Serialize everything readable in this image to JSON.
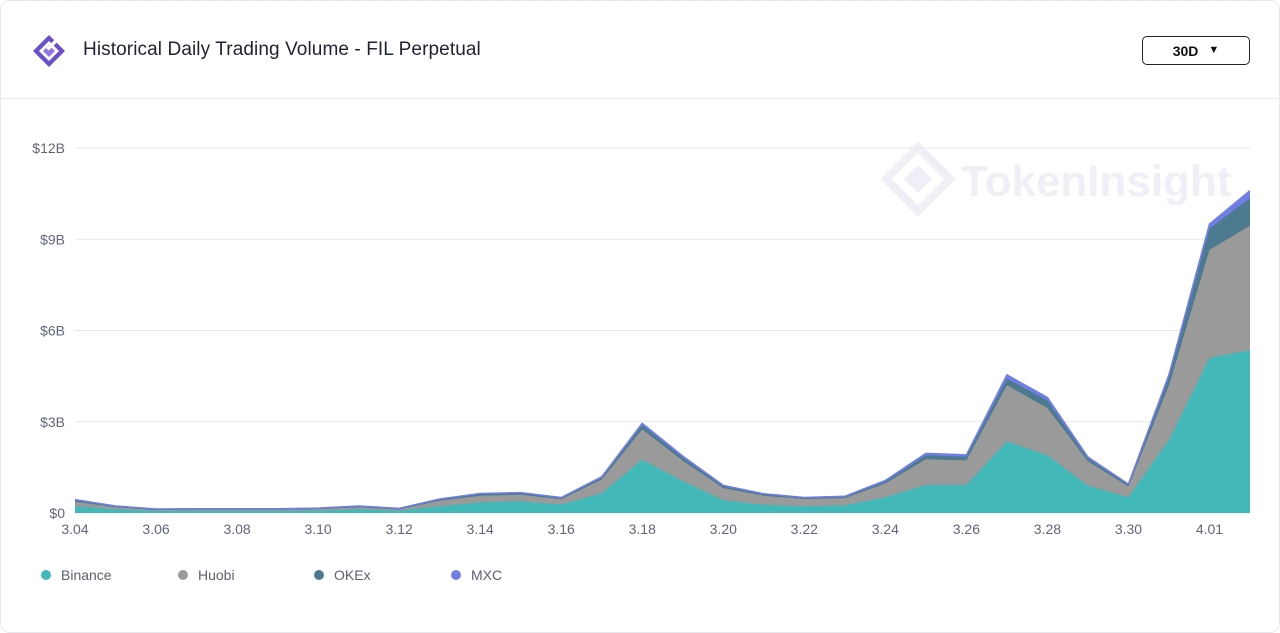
{
  "header": {
    "title": "Historical Daily Trading Volume - FIL Perpetual",
    "range_label": "30D"
  },
  "watermark": "TokenInsight",
  "colors": {
    "binance": "#43b8b8",
    "huobi": "#9a9a9a",
    "okex": "#4e7a90",
    "mxc": "#6f7fe3",
    "grid": "#e5e7ec",
    "axis_text": "#60667a"
  },
  "legend": [
    {
      "label": "Binance",
      "color": "#43b8b8"
    },
    {
      "label": "Huobi",
      "color": "#9a9a9a"
    },
    {
      "label": "OKEx",
      "color": "#4e7a90"
    },
    {
      "label": "MXC",
      "color": "#6f7fe3"
    }
  ],
  "chart_data": {
    "type": "area",
    "stacked": true,
    "x": [
      "3.04",
      "3.05",
      "3.06",
      "3.07",
      "3.08",
      "3.09",
      "3.10",
      "3.11",
      "3.12",
      "3.13",
      "3.14",
      "3.15",
      "3.16",
      "3.17",
      "3.18",
      "3.19",
      "3.20",
      "3.21",
      "3.22",
      "3.23",
      "3.24",
      "3.25",
      "3.26",
      "3.27",
      "3.28",
      "3.29",
      "3.30",
      "3.31",
      "4.01",
      "4.02"
    ],
    "x_tick_labels": [
      "3.04",
      "3.06",
      "3.08",
      "3.10",
      "3.12",
      "3.14",
      "3.16",
      "3.18",
      "3.20",
      "3.22",
      "3.24",
      "3.26",
      "3.28",
      "3.30",
      "4.01"
    ],
    "y_tick_labels": [
      "$0",
      "$3B",
      "$6B",
      "$9B",
      "$12B"
    ],
    "y_ticks": [
      0,
      3,
      6,
      9,
      12
    ],
    "ylim": [
      0,
      12
    ],
    "y_unit": "billions USD",
    "series": [
      {
        "name": "Binance",
        "values": [
          0.22,
          0.12,
          0.07,
          0.07,
          0.07,
          0.07,
          0.08,
          0.12,
          0.08,
          0.22,
          0.35,
          0.38,
          0.28,
          0.65,
          1.75,
          1.05,
          0.42,
          0.27,
          0.22,
          0.25,
          0.52,
          0.92,
          0.92,
          2.35,
          1.9,
          0.9,
          0.52,
          2.4,
          5.1,
          5.35
        ]
      },
      {
        "name": "Huobi",
        "values": [
          0.15,
          0.07,
          0.03,
          0.04,
          0.04,
          0.04,
          0.05,
          0.07,
          0.04,
          0.18,
          0.22,
          0.22,
          0.17,
          0.45,
          1.0,
          0.67,
          0.4,
          0.3,
          0.24,
          0.24,
          0.45,
          0.85,
          0.81,
          1.85,
          1.55,
          0.8,
          0.35,
          1.8,
          3.55,
          4.1
        ]
      },
      {
        "name": "OKEx",
        "values": [
          0.05,
          0.03,
          0.02,
          0.02,
          0.02,
          0.02,
          0.02,
          0.03,
          0.02,
          0.04,
          0.05,
          0.05,
          0.04,
          0.06,
          0.14,
          0.1,
          0.06,
          0.04,
          0.03,
          0.04,
          0.06,
          0.13,
          0.12,
          0.22,
          0.25,
          0.09,
          0.05,
          0.25,
          0.7,
          0.9
        ]
      },
      {
        "name": "MXC",
        "values": [
          0.02,
          0.01,
          0.01,
          0.01,
          0.01,
          0.01,
          0.01,
          0.01,
          0.01,
          0.02,
          0.02,
          0.02,
          0.02,
          0.03,
          0.06,
          0.05,
          0.03,
          0.02,
          0.02,
          0.02,
          0.04,
          0.06,
          0.06,
          0.12,
          0.1,
          0.05,
          0.03,
          0.1,
          0.15,
          0.25
        ]
      }
    ],
    "grid": true,
    "legend_position": "bottom-left"
  }
}
